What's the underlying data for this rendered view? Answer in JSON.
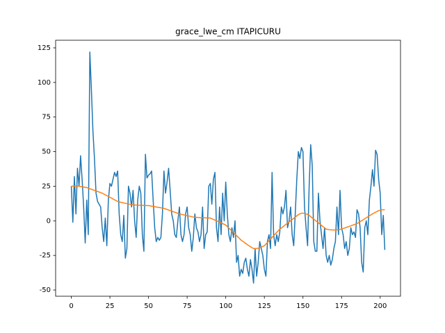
{
  "chart_data": {
    "type": "line",
    "title": "grace_lwe_cm ITAPICURU",
    "x": [
      0,
      1,
      2,
      3,
      4,
      5,
      6,
      7,
      8,
      9,
      10,
      11,
      12,
      13,
      14,
      15,
      16,
      17,
      18,
      19,
      20,
      21,
      22,
      23,
      24,
      25,
      26,
      27,
      28,
      29,
      30,
      31,
      32,
      33,
      34,
      35,
      36,
      37,
      38,
      39,
      40,
      41,
      42,
      43,
      44,
      45,
      46,
      47,
      48,
      49,
      50,
      51,
      52,
      53,
      54,
      55,
      56,
      57,
      58,
      59,
      60,
      61,
      62,
      63,
      64,
      65,
      66,
      67,
      68,
      69,
      70,
      71,
      72,
      73,
      74,
      75,
      76,
      77,
      78,
      79,
      80,
      81,
      82,
      83,
      84,
      85,
      86,
      87,
      88,
      89,
      90,
      91,
      92,
      93,
      94,
      95,
      96,
      97,
      98,
      99,
      100,
      101,
      102,
      103,
      104,
      105,
      106,
      107,
      108,
      109,
      110,
      111,
      112,
      113,
      114,
      115,
      116,
      117,
      118,
      119,
      120,
      121,
      122,
      123,
      124,
      125,
      126,
      127,
      128,
      129,
      130,
      131,
      132,
      133,
      134,
      135,
      136,
      137,
      138,
      139,
      140,
      141,
      142,
      143,
      144,
      145,
      146,
      147,
      148,
      149,
      150,
      151,
      152,
      153,
      154,
      155,
      156,
      157,
      158,
      159,
      160,
      161,
      162,
      163,
      164,
      165,
      166,
      167,
      168,
      169,
      170,
      171,
      172,
      173,
      174,
      175,
      176,
      177,
      178,
      179,
      180,
      181,
      182,
      183,
      184,
      185,
      186,
      187,
      188,
      189,
      190,
      191,
      192,
      193,
      194,
      195,
      196,
      197,
      198,
      199,
      200,
      201,
      202,
      203
    ],
    "series": [
      {
        "color": "#1f77b4",
        "values": [
          25,
          -1,
          32,
          5,
          38,
          25,
          47,
          30,
          10,
          -16,
          15,
          -10,
          122,
          95,
          65,
          45,
          20,
          14,
          12,
          10,
          -5,
          -15,
          2,
          -18,
          15,
          27,
          25,
          30,
          35,
          32,
          36,
          5,
          -10,
          -15,
          4,
          -27,
          -20,
          25,
          20,
          10,
          22,
          0,
          -12,
          15,
          25,
          20,
          -10,
          -22,
          48,
          31,
          33,
          34,
          36,
          15,
          -5,
          -15,
          -12,
          -14,
          -12,
          5,
          36,
          20,
          28,
          38,
          22,
          5,
          0,
          -10,
          -12,
          0,
          10,
          -10,
          -15,
          -10,
          5,
          10,
          -5,
          -10,
          -22,
          -12,
          5,
          -5,
          -8,
          -15,
          -10,
          10,
          -20,
          -10,
          -8,
          25,
          27,
          12,
          30,
          35,
          -5,
          -15,
          10,
          -10,
          20,
          0,
          28,
          5,
          -10,
          -15,
          -5,
          -12,
          0,
          -30,
          -25,
          -40,
          -35,
          -38,
          -30,
          -27,
          -35,
          -40,
          -28,
          -35,
          -45,
          -20,
          -40,
          -30,
          -15,
          -20,
          -25,
          -35,
          -40,
          -15,
          -10,
          -20,
          35,
          -10,
          -18,
          -10,
          -15,
          -8,
          10,
          5,
          10,
          22,
          -5,
          0,
          10,
          -10,
          -18,
          5,
          30,
          50,
          45,
          53,
          50,
          10,
          -5,
          -18,
          25,
          55,
          40,
          -15,
          -22,
          -22,
          20,
          0,
          -10,
          -20,
          -5,
          -25,
          -30,
          -25,
          -32,
          -28,
          -20,
          -15,
          10,
          -10,
          22,
          -5,
          -10,
          -20,
          -15,
          -25,
          -20,
          -5,
          -10,
          -8,
          -12,
          8,
          5,
          -5,
          -30,
          -37,
          -5,
          0,
          -10,
          15,
          25,
          37,
          25,
          51,
          48,
          30,
          20,
          -10,
          4,
          -21
        ]
      },
      {
        "color": "#ff7f0e",
        "values": [
          25,
          25,
          25,
          25,
          25,
          25,
          24.8,
          24.6,
          24.4,
          24.2,
          24,
          23.6,
          23.2,
          22.8,
          22.4,
          22,
          21.6,
          21.2,
          20.8,
          20.4,
          20,
          19.4,
          18.8,
          18.2,
          17.6,
          17,
          16.4,
          15.8,
          15.2,
          14.6,
          14,
          13.7,
          13.4,
          13.2,
          12.9,
          12.7,
          12.4,
          12.2,
          11.9,
          11.7,
          11.5,
          11.4,
          11.4,
          11.3,
          11.3,
          11.2,
          11.2,
          11.1,
          11.1,
          11,
          11,
          10.8,
          10.6,
          10.4,
          10.2,
          10,
          9.8,
          9.6,
          9.4,
          9.2,
          9,
          8.6,
          8.2,
          7.8,
          7.4,
          7,
          6.6,
          6.2,
          5.8,
          5.4,
          5,
          4.75,
          4.5,
          4.25,
          4,
          3.75,
          3.5,
          3.25,
          3,
          2.75,
          2.5,
          2.45,
          2.4,
          2.35,
          2.3,
          2.25,
          2.2,
          2.15,
          2.1,
          2.05,
          2,
          1.5,
          1,
          0.5,
          0,
          -0.5,
          -1,
          -1.5,
          -2,
          -2.5,
          -3,
          -4.1,
          -5.2,
          -6.3,
          -7.4,
          -8.5,
          -9.6,
          -10.7,
          -11.8,
          -12.9,
          -14,
          -14.8,
          -15.6,
          -16.4,
          -17.2,
          -18,
          -18.7,
          -19.4,
          -20,
          -20,
          -20,
          -19.8,
          -19.5,
          -19,
          -18.5,
          -18,
          -16.8,
          -15.6,
          -14.4,
          -13.2,
          -12,
          -10.8,
          -9.6,
          -8.4,
          -7.2,
          -6,
          -5.2,
          -4.3,
          -3.4,
          -2.5,
          -1.6,
          -0.8,
          0,
          0.9,
          1.8,
          2.7,
          3.6,
          4.4,
          5,
          5.5,
          5.5,
          5.3,
          5,
          4.6,
          4,
          3,
          2.1,
          1.2,
          0.3,
          -0.6,
          -1.5,
          -2.4,
          -3.3,
          -4.2,
          -5.1,
          -6,
          -6.2,
          -6.4,
          -6.5,
          -6.6,
          -6.6,
          -6.6,
          -6.5,
          -6.4,
          -6.2,
          -6,
          -5.6,
          -5.2,
          -4.8,
          -4.4,
          -4,
          -3.6,
          -3.2,
          -2.8,
          -2.4,
          -2,
          -1.3,
          -0.6,
          0.1,
          0.8,
          1.5,
          2.2,
          2.9,
          3.6,
          4.3,
          5,
          5.6,
          6.2,
          6.8,
          7.3,
          7.7,
          7.9,
          8,
          8
        ]
      }
    ],
    "xlim": [
      -10.15,
      213.15
    ],
    "xticks": [
      0,
      25,
      50,
      75,
      100,
      125,
      150,
      175,
      200
    ],
    "ylim": [
      -54.5,
      130.5
    ],
    "yticks": [
      -50,
      -25,
      0,
      25,
      50,
      75,
      100,
      125
    ],
    "grid": false
  }
}
